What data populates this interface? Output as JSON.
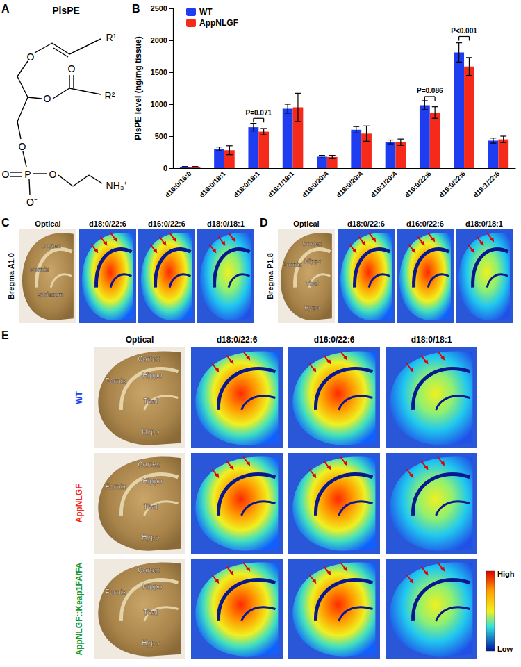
{
  "chart_data": {
    "label": "B",
    "type": "bar",
    "y_label": "PlsPE level (ng/mg tissue)",
    "categories": [
      "d16:0/16:0",
      "d16:0/18:1",
      "d18:0/18:1",
      "d18:1/18:1",
      "d16:0/20:4",
      "d18:0/20:4",
      "d18:1/20:4",
      "d16:0/22:6",
      "d18:0/22:6",
      "d18:1/22:6"
    ],
    "series": [
      {
        "name": "WT",
        "color": "#1e3cf0",
        "values": [
          20,
          300,
          640,
          930,
          180,
          600,
          410,
          985,
          1810,
          430
        ],
        "errors": [
          5,
          30,
          60,
          70,
          20,
          50,
          30,
          70,
          150,
          40
        ]
      },
      {
        "name": "AppNLGF",
        "color": "#f52a1a",
        "values": [
          20,
          280,
          570,
          950,
          175,
          540,
          405,
          870,
          1590,
          450
        ],
        "errors": [
          5,
          70,
          50,
          220,
          25,
          120,
          50,
          90,
          140,
          50
        ]
      }
    ],
    "annotations": [
      {
        "text": "P=0.071",
        "category": "d18:0/18:1",
        "y": 780
      },
      {
        "text": "P=0.086",
        "category": "d16:0/22:6",
        "y": 1120
      },
      {
        "text": "P<0.001",
        "category": "d18:0/22:6",
        "y": 2060
      }
    ],
    "ylim": [
      0,
      2500
    ],
    "yticks": [
      0,
      500,
      1000,
      1500,
      2000,
      2500
    ],
    "grid": false,
    "legend": "upper left"
  },
  "panels": {
    "A": {
      "label": "A",
      "title": "PlsPE",
      "atoms": [
        "O",
        "R¹",
        "O",
        "O",
        "R²",
        "O",
        "O",
        "P",
        "O⁻",
        "O",
        "NH₃⁺"
      ]
    },
    "C": {
      "label": "C",
      "section": "Bregma A1.0",
      "columns": [
        "Optical",
        "d18:0/22:6",
        "d16:0/22:6",
        "d18:0/18:1"
      ],
      "regions": [
        "Cortex",
        "Fornix",
        "Striatum"
      ]
    },
    "D": {
      "label": "D",
      "section": "Bregma P1.8",
      "columns": [
        "Optical",
        "d18:0/22:6",
        "d16:0/22:6",
        "d18:0/18:1"
      ],
      "regions": [
        "Cortex",
        "Fornix",
        "Hippo",
        "Thal",
        "Hypo"
      ]
    },
    "E": {
      "label": "E",
      "columns": [
        "Optical",
        "d18:0/22:6",
        "d16:0/22:6",
        "d18:0/18:1"
      ],
      "rows": [
        {
          "text": "WT",
          "color": "#1e3cf0"
        },
        {
          "text": "AppNLGF",
          "color": "#f52a1a"
        },
        {
          "text": "AppNLGF::Keap1FA/FA",
          "color": "#1a9a2a"
        }
      ],
      "regions": [
        "Cortex",
        "Hippo",
        "Fornix",
        "Thal",
        "Hypo"
      ],
      "colorbar": {
        "high": "High",
        "low": "Low"
      }
    }
  }
}
